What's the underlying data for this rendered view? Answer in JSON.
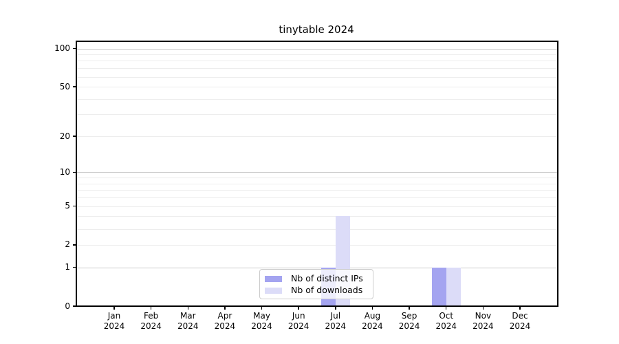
{
  "chart_data": {
    "type": "bar",
    "title": "tinytable 2024",
    "categories": [
      "Jan",
      "Feb",
      "Mar",
      "Apr",
      "May",
      "Jun",
      "Jul",
      "Aug",
      "Sep",
      "Oct",
      "Nov",
      "Dec"
    ],
    "category_year": "2024",
    "series": [
      {
        "name": "Nb of distinct IPs",
        "color": "#a4a4f0",
        "values": [
          0,
          0,
          0,
          0,
          0,
          0,
          1,
          0,
          0,
          1,
          0,
          0
        ]
      },
      {
        "name": "Nb of downloads",
        "color": "#dcdcf8",
        "values": [
          0,
          0,
          0,
          0,
          0,
          0,
          4,
          0,
          0,
          1,
          0,
          0
        ]
      }
    ],
    "y_ticks": [
      0,
      1,
      2,
      5,
      10,
      20,
      50,
      100
    ],
    "y_minor_gridlines": [
      2,
      3,
      4,
      5,
      6,
      7,
      8,
      9,
      20,
      30,
      40,
      50,
      60,
      70,
      80,
      90
    ],
    "y_major_gridlines": [
      1,
      10,
      100
    ],
    "y_scale": "log10(value+1)",
    "ylim": [
      0,
      115
    ],
    "xlabel": "",
    "ylabel": "",
    "grid": "horizontal",
    "legend_position": "bottom-center",
    "colors": {
      "grid_major": "#c9c9c9",
      "grid_minor": "#ededed",
      "axis": "#000000",
      "legend_border": "#cccccc",
      "legend_background": "rgba(255,255,255,0.8)",
      "background": "#ffffff"
    }
  }
}
